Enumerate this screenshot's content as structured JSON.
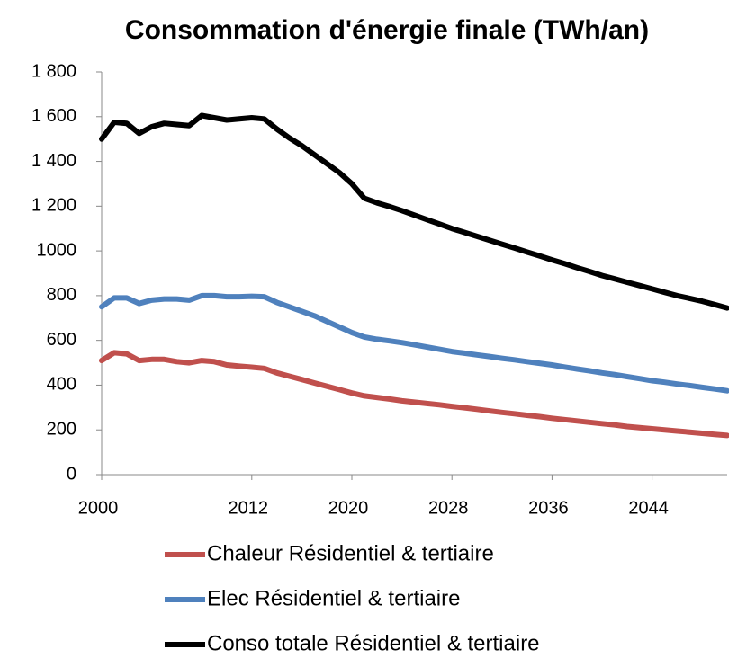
{
  "chart_data": {
    "type": "line",
    "title": "Consommation d'énergie finale (TWh/an)",
    "x": [
      2000,
      2001,
      2002,
      2003,
      2004,
      2005,
      2006,
      2007,
      2008,
      2009,
      2010,
      2011,
      2012,
      2013,
      2014,
      2015,
      2016,
      2017,
      2018,
      2019,
      2020,
      2021,
      2022,
      2023,
      2024,
      2025,
      2026,
      2027,
      2028,
      2029,
      2030,
      2031,
      2032,
      2033,
      2034,
      2035,
      2036,
      2037,
      2038,
      2039,
      2040,
      2041,
      2042,
      2043,
      2044,
      2045,
      2046,
      2047,
      2048,
      2049,
      2050
    ],
    "series": [
      {
        "name": "Chaleur Résidentiel & tertiaire",
        "color": "#c0504d",
        "values": [
          510,
          545,
          540,
          510,
          515,
          515,
          505,
          500,
          510,
          505,
          490,
          485,
          480,
          475,
          455,
          440,
          425,
          410,
          395,
          380,
          365,
          352,
          345,
          338,
          330,
          324,
          318,
          312,
          305,
          299,
          292,
          285,
          278,
          272,
          265,
          259,
          252,
          246,
          240,
          234,
          228,
          222,
          215,
          210,
          205,
          200,
          195,
          190,
          185,
          180,
          175
        ]
      },
      {
        "name": "Elec Résidentiel & tertiaire",
        "color": "#4f81bd",
        "values": [
          750,
          790,
          790,
          765,
          780,
          785,
          785,
          780,
          800,
          800,
          795,
          795,
          797,
          795,
          770,
          750,
          730,
          710,
          685,
          660,
          635,
          615,
          605,
          598,
          590,
          580,
          570,
          560,
          550,
          543,
          535,
          528,
          520,
          513,
          505,
          498,
          490,
          481,
          472,
          464,
          455,
          447,
          438,
          429,
          420,
          413,
          405,
          398,
          390,
          383,
          375
        ]
      },
      {
        "name": "Conso totale Résidentiel & tertiaire",
        "color": "#000000",
        "values": [
          1500,
          1575,
          1570,
          1525,
          1555,
          1570,
          1565,
          1560,
          1605,
          1595,
          1585,
          1590,
          1595,
          1590,
          1545,
          1505,
          1470,
          1430,
          1390,
          1350,
          1300,
          1235,
          1215,
          1198,
          1180,
          1160,
          1140,
          1120,
          1100,
          1083,
          1065,
          1048,
          1030,
          1013,
          995,
          978,
          960,
          943,
          925,
          908,
          890,
          875,
          860,
          845,
          830,
          815,
          800,
          788,
          775,
          760,
          745
        ]
      }
    ],
    "xlim": [
      2000,
      2050
    ],
    "xticks": [
      2000,
      2012,
      2020,
      2028,
      2036,
      2044
    ],
    "ylim": [
      0,
      1800
    ],
    "yticks": [
      0,
      200,
      400,
      600,
      800,
      1000,
      {
        "value": 1200,
        "label": "1 200"
      },
      {
        "value": 1400,
        "label": "1 400"
      },
      {
        "value": 1600,
        "label": "1 600"
      },
      {
        "value": 1800,
        "label": "1 800"
      }
    ]
  }
}
